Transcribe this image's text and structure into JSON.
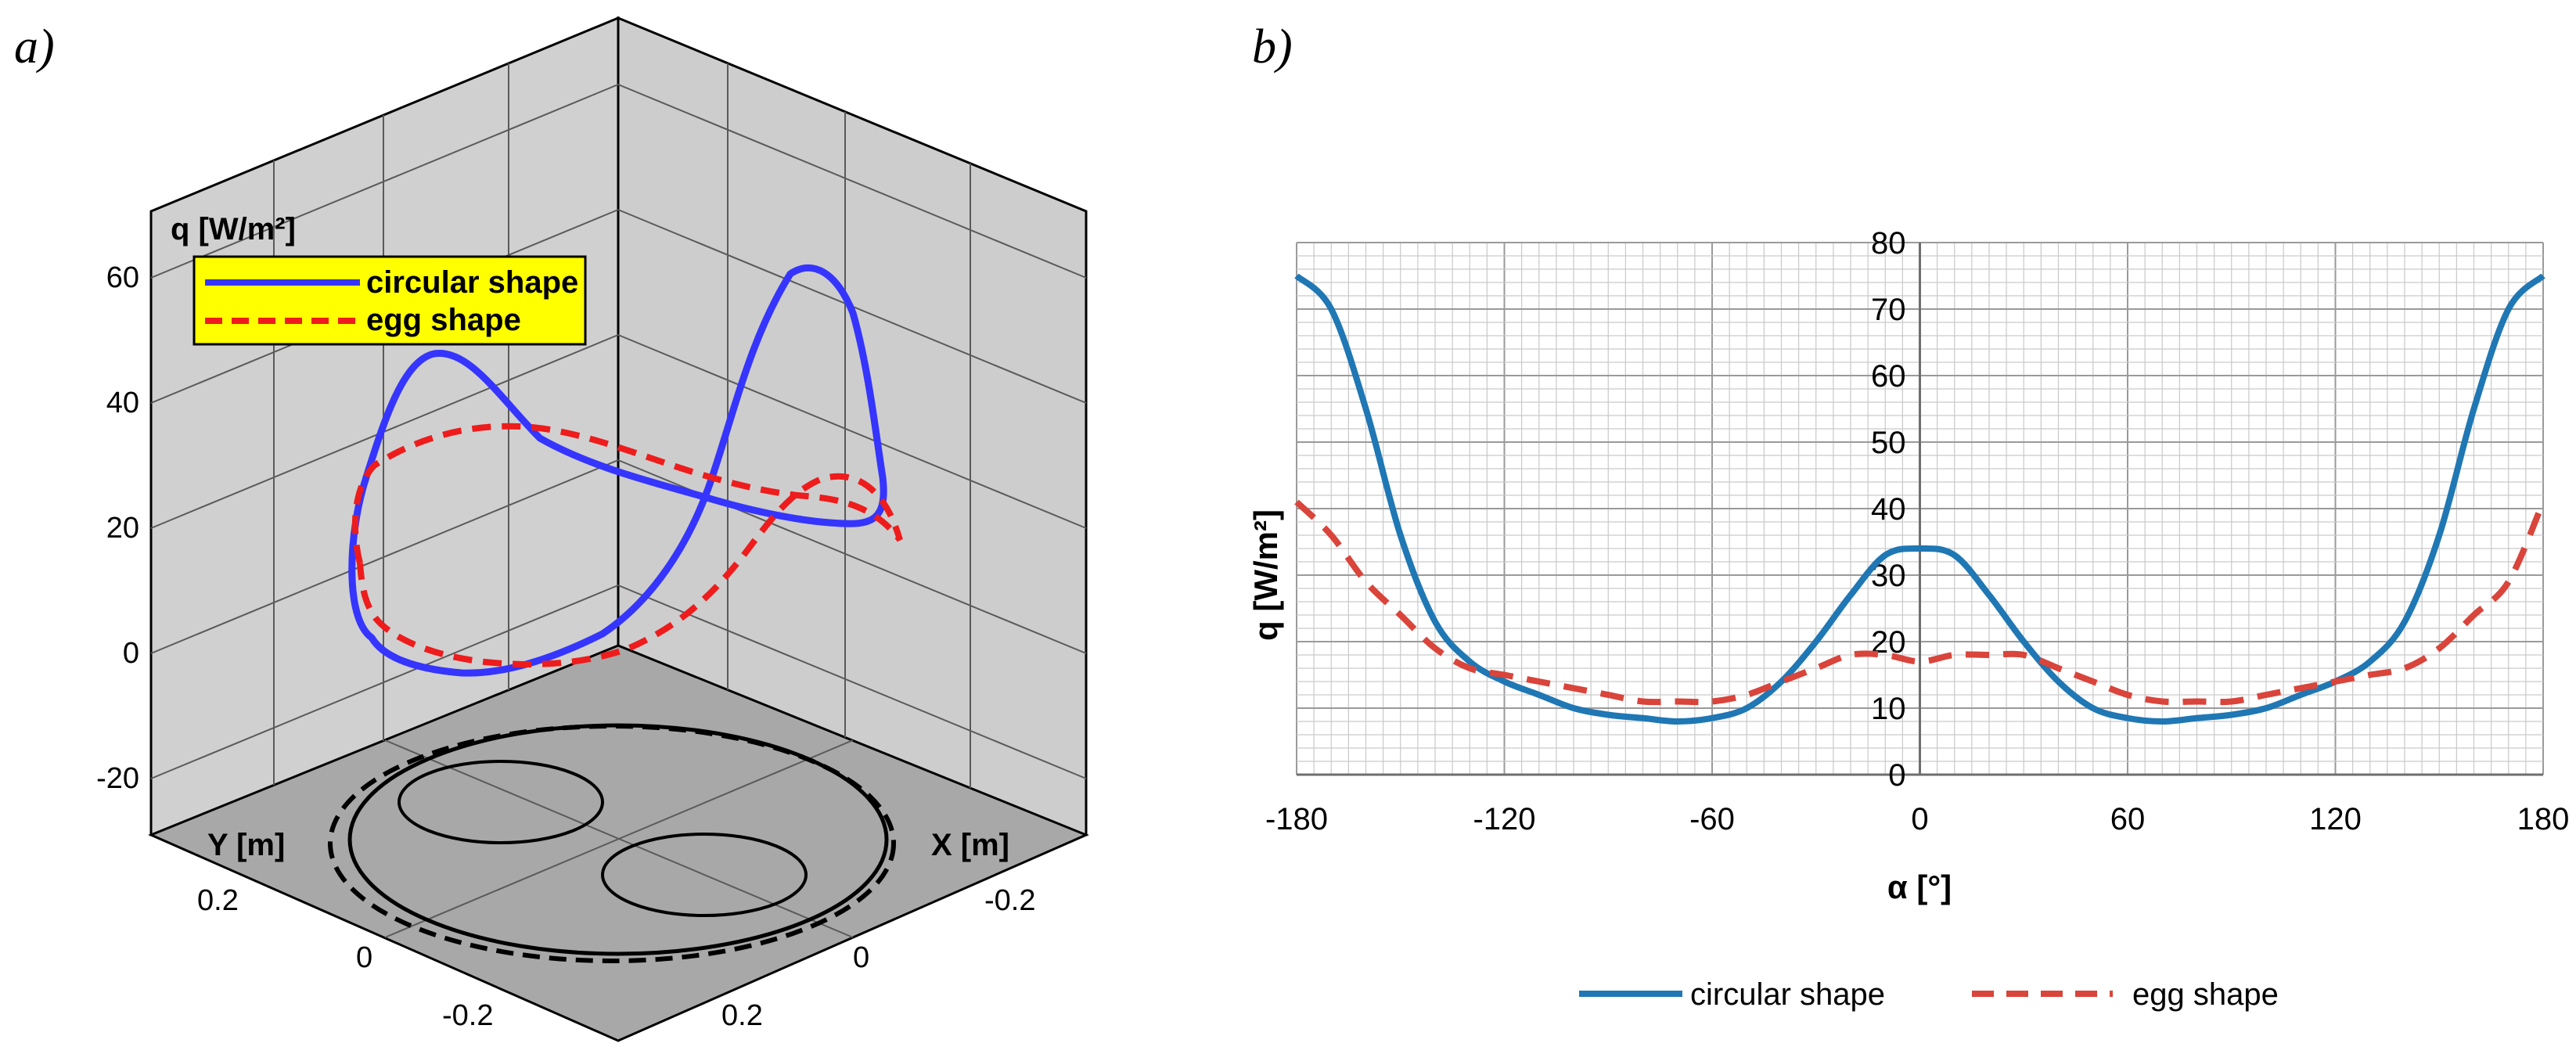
{
  "panels": {
    "a_label": "a)",
    "b_label": "b)"
  },
  "colors": {
    "blue3d": "#3535ff",
    "red3d": "#ee1c1c",
    "blue": "#1f77b4",
    "red": "#d9443b",
    "legend_bg": "#ffff00",
    "wall": "#cfcfcf",
    "floor": "#a9a9a9"
  },
  "chart_data": [
    {
      "type": "line",
      "title": "",
      "view": "3d",
      "zlabel": "q [W/m²]",
      "xlabel": "X [m]",
      "ylabel": "Y [m]",
      "z_ticks": [
        "60",
        "40",
        "20",
        "0",
        "-20"
      ],
      "x_ticks": [
        "-0.2",
        "0",
        "0.2"
      ],
      "y_ticks": [
        "0.2",
        "0",
        "-0.2"
      ],
      "zlim": [
        -30,
        70
      ],
      "legend": [
        "circular shape",
        "egg shape"
      ],
      "series": [
        {
          "name": "circular shape",
          "values": "q(α) on circular cross-section, peak ≈60"
        },
        {
          "name": "egg shape",
          "values": "q(α) on egg cross-section, peak ≈36"
        }
      ]
    },
    {
      "type": "line",
      "title": "",
      "xlabel": "α [°]",
      "ylabel": "q [W/m²]",
      "xlim": [
        -180,
        180
      ],
      "ylim": [
        0,
        80
      ],
      "x_ticks": [
        "-180",
        "-120",
        "-60",
        "0",
        "60",
        "120",
        "180"
      ],
      "y_ticks": [
        "0",
        "10",
        "20",
        "30",
        "40",
        "50",
        "60",
        "70",
        "80"
      ],
      "x": [
        -180,
        -170,
        -160,
        -150,
        -140,
        -130,
        -120,
        -110,
        -100,
        -90,
        -80,
        -70,
        -60,
        -50,
        -40,
        -30,
        -20,
        -10,
        0,
        10,
        20,
        30,
        40,
        50,
        60,
        70,
        80,
        90,
        100,
        110,
        120,
        130,
        140,
        150,
        160,
        170,
        180
      ],
      "series": [
        {
          "name": "circular shape",
          "style": "solid",
          "values": [
            75,
            70,
            55,
            36,
            23,
            17,
            14,
            12,
            10,
            9,
            8.5,
            8,
            8.5,
            10,
            14,
            20,
            27,
            33,
            34,
            33,
            27,
            20,
            14,
            10,
            8.5,
            8,
            8.5,
            9,
            10,
            12,
            14,
            17,
            23,
            36,
            55,
            70,
            75
          ]
        },
        {
          "name": "egg shape",
          "style": "dashed",
          "values": [
            41,
            36,
            29,
            24,
            19,
            16,
            15,
            14,
            13,
            12,
            11,
            11,
            11,
            12,
            14,
            16,
            18,
            18,
            17,
            18,
            18,
            18,
            16,
            14,
            12,
            11,
            11,
            11,
            12,
            13,
            14,
            15,
            16,
            19,
            24,
            29,
            41
          ]
        }
      ],
      "legend": [
        "circular shape",
        "egg shape"
      ]
    }
  ]
}
